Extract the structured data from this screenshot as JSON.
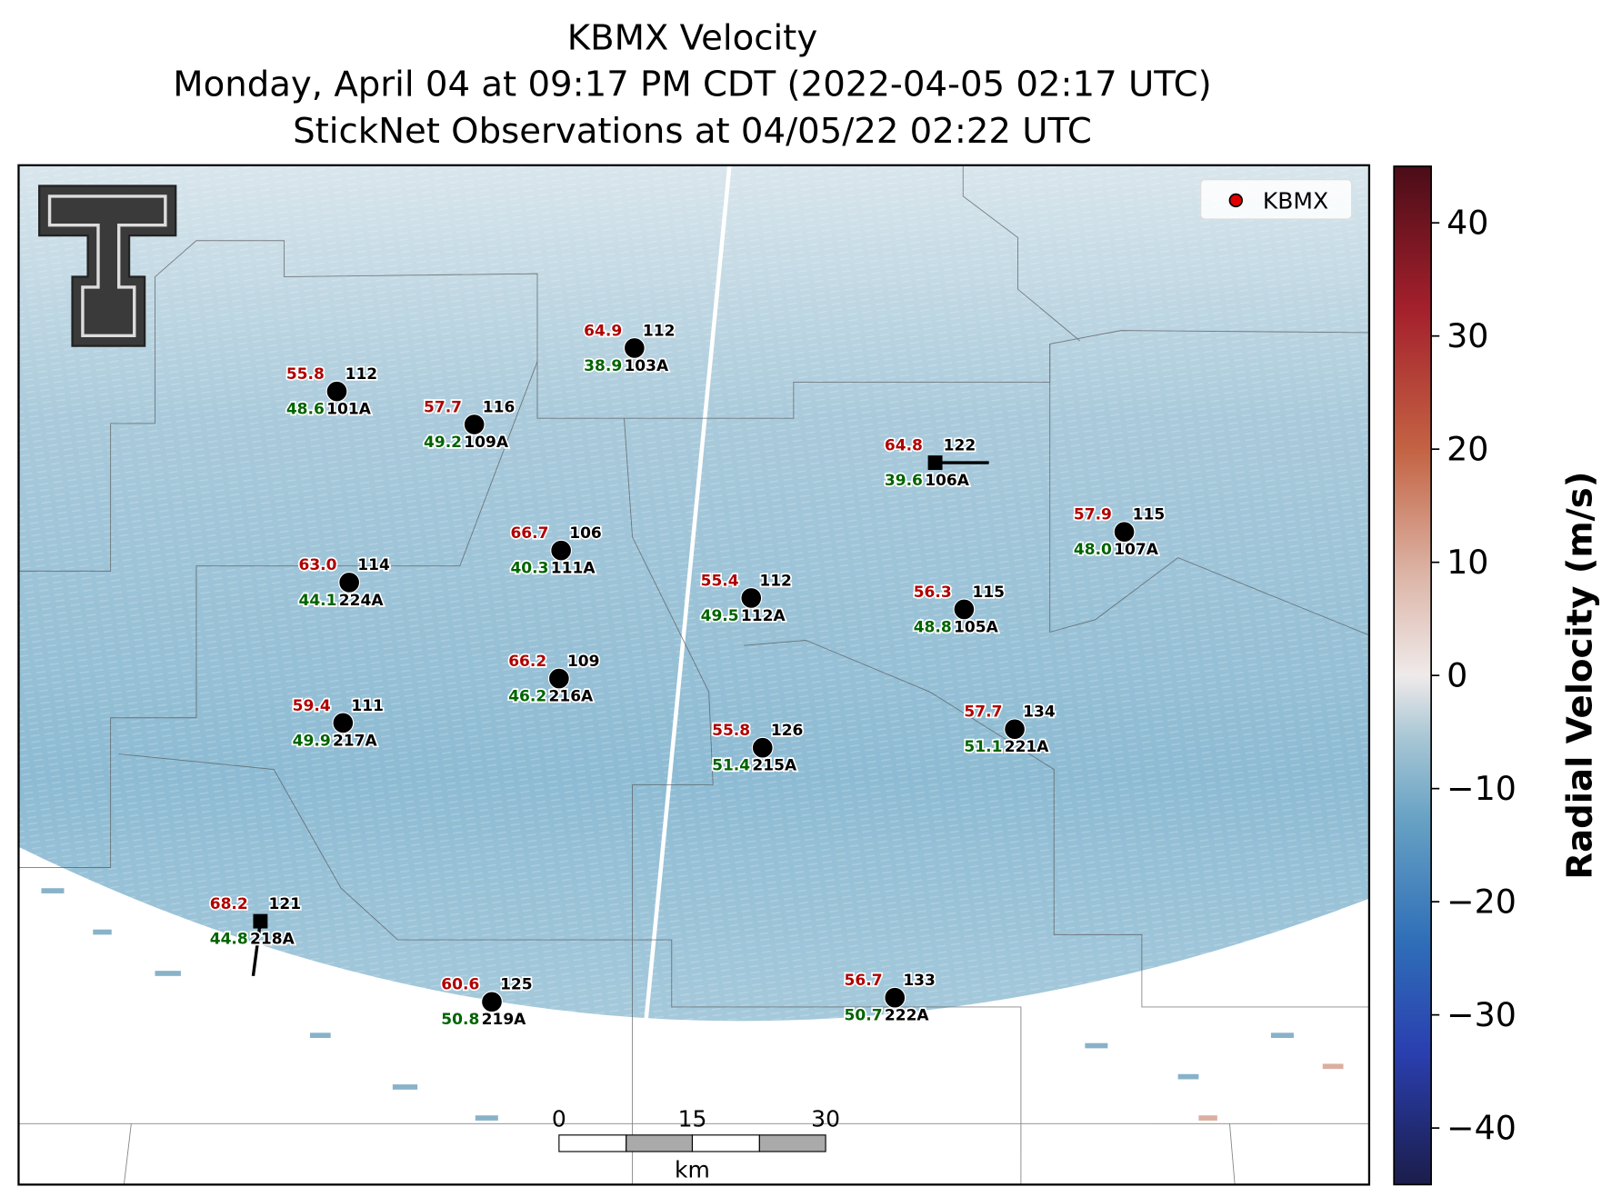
{
  "title": [
    "KBMX Velocity",
    "Monday, April 04 at 09:17 PM CDT (2022-04-05 02:17 UTC)",
    "StickNet Observations at 04/05/22 02:22 UTC"
  ],
  "legend": "KBMX",
  "stations": [
    {
      "red": "64.9",
      "top": "112",
      "green": "38.9",
      "id": "103A"
    },
    {
      "red": "55.8",
      "top": "112",
      "green": "48.6",
      "id": "101A"
    },
    {
      "red": "57.7",
      "top": "116",
      "green": "49.2",
      "id": "109A"
    },
    {
      "red": "64.8",
      "top": "122",
      "green": "39.6",
      "id": "106A"
    },
    {
      "red": "57.9",
      "top": "115",
      "green": "48.0",
      "id": "107A"
    },
    {
      "red": "66.7",
      "top": "106",
      "green": "40.3",
      "id": "111A"
    },
    {
      "red": "63.0",
      "top": "114",
      "green": "44.1",
      "id": "224A"
    },
    {
      "red": "55.4",
      "top": "112",
      "green": "49.5",
      "id": "112A"
    },
    {
      "red": "56.3",
      "top": "115",
      "green": "48.8",
      "id": "105A"
    },
    {
      "red": "66.2",
      "top": "109",
      "green": "46.2",
      "id": "216A"
    },
    {
      "red": "59.4",
      "top": "111",
      "green": "49.9",
      "id": "217A"
    },
    {
      "red": "57.7",
      "top": "134",
      "green": "51.1",
      "id": "221A"
    },
    {
      "red": "55.8",
      "top": "126",
      "green": "51.4",
      "id": "215A"
    },
    {
      "red": "68.2",
      "top": "121",
      "green": "44.8",
      "id": "218A"
    },
    {
      "red": "60.6",
      "top": "125",
      "green": "50.8",
      "id": "219A"
    },
    {
      "red": "56.7",
      "top": "133",
      "green": "50.7",
      "id": "222A"
    }
  ],
  "scalebar": {
    "ticks": [
      "0",
      "15",
      "30"
    ],
    "unit": "km"
  },
  "colorbar": {
    "label": "Radial Velocity (m/s)",
    "lim": [
      -45,
      45
    ],
    "ticks": [
      {
        "value": -40,
        "label": "−40"
      },
      {
        "value": -30,
        "label": "−30"
      },
      {
        "value": -20,
        "label": "−20"
      },
      {
        "value": -10,
        "label": "−10"
      },
      0,
      10,
      20,
      30,
      40
    ]
  }
}
